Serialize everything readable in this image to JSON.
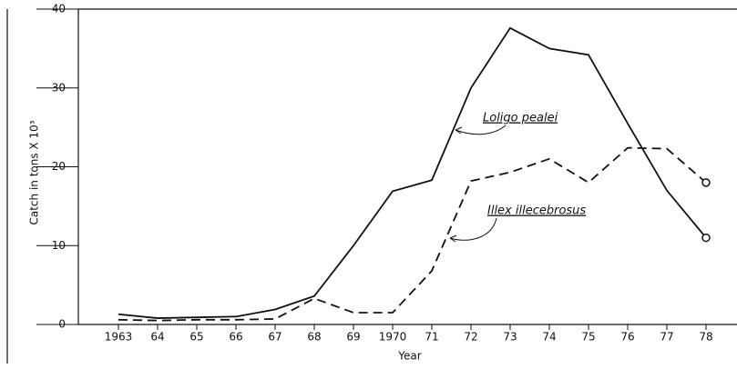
{
  "chart_data": {
    "type": "line",
    "y_label": "Catch in tons X 10³",
    "x_label": "Year",
    "categories": [
      "1963",
      "64",
      "65",
      "66",
      "67",
      "68",
      "69",
      "1970",
      "71",
      "72",
      "73",
      "74",
      "75",
      "76",
      "77",
      "78"
    ],
    "series": [
      {
        "name": "Loligo pealei",
        "color": "#111111",
        "style": "solid",
        "values": [
          1.3,
          0.8,
          0.9,
          1.0,
          1.9,
          3.6,
          10,
          16.9,
          18.3,
          30,
          37.6,
          35,
          34.2,
          25.5,
          17,
          11
        ]
      },
      {
        "name": "Illex illecebrosus",
        "color": "#111111",
        "style": "dashed",
        "values": [
          0.6,
          0.5,
          0.6,
          0.6,
          0.7,
          3.3,
          1.5,
          1.5,
          6.8,
          18.2,
          19.3,
          21,
          18,
          22.4,
          22.3,
          18
        ]
      }
    ],
    "ylim": [
      0,
      40
    ],
    "yticks": [
      0,
      10,
      20,
      30,
      40
    ]
  }
}
